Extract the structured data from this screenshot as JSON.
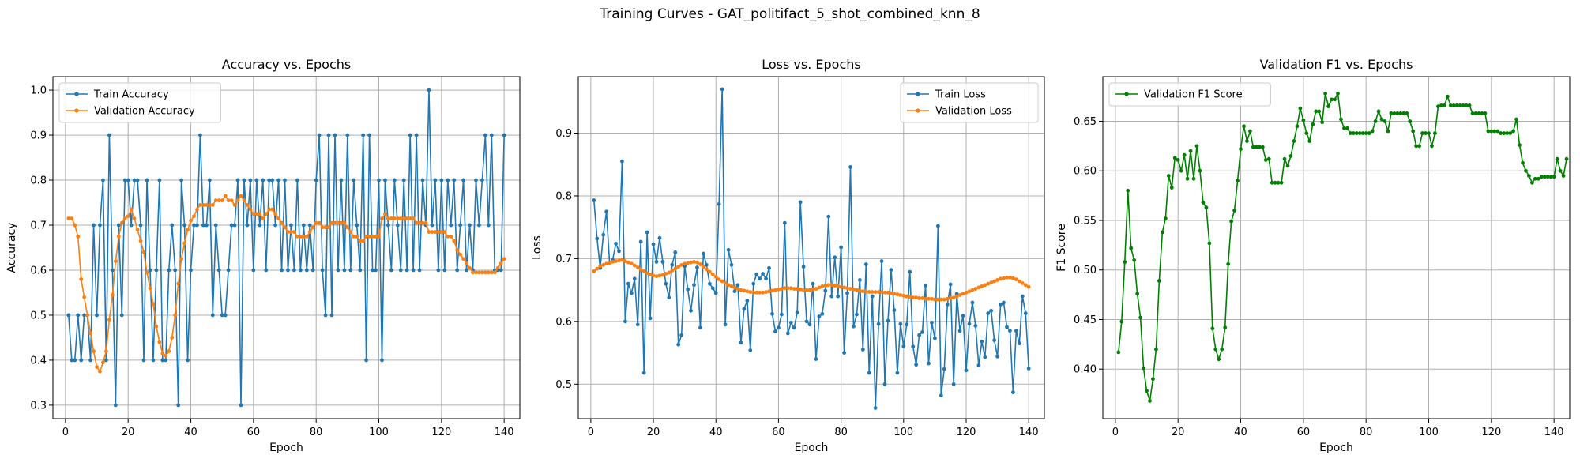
{
  "figure": {
    "suptitle": "Training Curves - GAT_politifact_5_shot_combined_knn_8"
  },
  "chart_data": [
    {
      "type": "line",
      "title": "Accuracy vs. Epochs",
      "xlabel": "Epoch",
      "ylabel": "Accuracy",
      "xlim": [
        -4,
        145
      ],
      "ylim": [
        0.27,
        1.03
      ],
      "xticks": [
        0,
        20,
        40,
        60,
        80,
        100,
        120,
        140
      ],
      "yticks": [
        0.3,
        0.4,
        0.5,
        0.6,
        0.7,
        0.8,
        0.9,
        1.0
      ],
      "ytick_decimals": 1,
      "grid": true,
      "legend_position": "upper-left",
      "series": [
        {
          "name": "Train Accuracy",
          "color": "#1f77b4",
          "x_start": 1,
          "values": [
            0.5,
            0.4,
            0.4,
            0.5,
            0.4,
            0.5,
            0.5,
            0.4,
            0.7,
            0.5,
            0.7,
            0.8,
            0.4,
            0.9,
            0.6,
            0.3,
            0.7,
            0.5,
            0.8,
            0.8,
            0.7,
            0.8,
            0.8,
            0.7,
            0.4,
            0.8,
            0.6,
            0.4,
            0.6,
            0.8,
            0.4,
            0.4,
            0.6,
            0.7,
            0.6,
            0.3,
            0.8,
            0.7,
            0.4,
            0.6,
            0.7,
            0.7,
            0.9,
            0.7,
            0.7,
            0.8,
            0.5,
            0.7,
            0.6,
            0.5,
            0.5,
            0.6,
            0.7,
            0.7,
            0.8,
            0.3,
            0.8,
            0.7,
            0.8,
            0.6,
            0.8,
            0.7,
            0.8,
            0.6,
            0.8,
            0.8,
            0.7,
            0.8,
            0.6,
            0.8,
            0.6,
            0.7,
            0.6,
            0.8,
            0.6,
            0.7,
            0.6,
            0.7,
            0.6,
            0.8,
            0.9,
            0.6,
            0.5,
            0.9,
            0.5,
            0.9,
            0.6,
            0.8,
            0.6,
            0.9,
            0.6,
            0.8,
            0.7,
            0.6,
            0.9,
            0.4,
            0.9,
            0.6,
            0.6,
            0.8,
            0.4,
            0.8,
            0.7,
            0.6,
            0.8,
            0.7,
            0.6,
            0.8,
            0.6,
            0.9,
            0.6,
            0.9,
            0.6,
            0.8,
            0.7,
            1.0,
            0.7,
            0.8,
            0.6,
            0.8,
            0.6,
            0.8,
            0.7,
            0.8,
            0.6,
            0.7,
            0.8,
            0.6,
            0.7,
            0.6,
            0.8,
            0.7,
            0.8,
            0.9,
            0.7,
            0.9,
            0.6,
            0.6,
            0.6,
            0.9
          ]
        },
        {
          "name": "Validation Accuracy",
          "color": "#ff7f0e",
          "x_start": 1,
          "values": [
            0.715,
            0.715,
            0.7,
            0.675,
            0.58,
            0.54,
            0.5,
            0.46,
            0.42,
            0.385,
            0.375,
            0.395,
            0.42,
            0.49,
            0.545,
            0.62,
            0.675,
            0.705,
            0.715,
            0.72,
            0.735,
            0.715,
            0.69,
            0.665,
            0.64,
            0.595,
            0.56,
            0.525,
            0.475,
            0.44,
            0.415,
            0.41,
            0.42,
            0.45,
            0.5,
            0.57,
            0.625,
            0.66,
            0.69,
            0.71,
            0.72,
            0.735,
            0.745,
            0.745,
            0.745,
            0.745,
            0.745,
            0.755,
            0.755,
            0.755,
            0.765,
            0.755,
            0.755,
            0.745,
            0.755,
            0.765,
            0.755,
            0.745,
            0.735,
            0.725,
            0.725,
            0.725,
            0.715,
            0.725,
            0.735,
            0.735,
            0.725,
            0.715,
            0.705,
            0.695,
            0.685,
            0.685,
            0.685,
            0.675,
            0.675,
            0.675,
            0.675,
            0.685,
            0.695,
            0.705,
            0.705,
            0.695,
            0.695,
            0.695,
            0.705,
            0.705,
            0.705,
            0.705,
            0.705,
            0.695,
            0.685,
            0.675,
            0.675,
            0.665,
            0.665,
            0.675,
            0.675,
            0.675,
            0.675,
            0.675,
            0.715,
            0.725,
            0.715,
            0.715,
            0.715,
            0.715,
            0.715,
            0.715,
            0.715,
            0.715,
            0.715,
            0.705,
            0.705,
            0.705,
            0.705,
            0.685,
            0.685,
            0.685,
            0.685,
            0.685,
            0.685,
            0.675,
            0.675,
            0.665,
            0.645,
            0.635,
            0.625,
            0.615,
            0.605,
            0.595,
            0.595,
            0.595,
            0.595,
            0.595,
            0.595,
            0.595,
            0.595,
            0.605,
            0.615,
            0.625
          ]
        }
      ]
    },
    {
      "type": "line",
      "title": "Loss vs. Epochs",
      "xlabel": "Epoch",
      "ylabel": "Loss",
      "xlim": [
        -4,
        145
      ],
      "ylim": [
        0.445,
        0.99
      ],
      "xticks": [
        0,
        20,
        40,
        60,
        80,
        100,
        120,
        140
      ],
      "yticks": [
        0.5,
        0.6,
        0.7,
        0.8,
        0.9
      ],
      "ytick_decimals": 1,
      "grid": true,
      "legend_position": "upper-right",
      "series": [
        {
          "name": "Train Loss",
          "color": "#1f77b4",
          "x_start": 1,
          "values": [
            0.793,
            0.732,
            0.685,
            0.738,
            0.775,
            0.693,
            0.698,
            0.724,
            0.712,
            0.855,
            0.6,
            0.66,
            0.645,
            0.668,
            0.595,
            0.727,
            0.518,
            0.742,
            0.605,
            0.723,
            0.695,
            0.733,
            0.695,
            0.66,
            0.638,
            0.69,
            0.71,
            0.563,
            0.578,
            0.688,
            0.651,
            0.617,
            0.658,
            0.686,
            0.59,
            0.708,
            0.69,
            0.66,
            0.653,
            0.645,
            0.787,
            0.97,
            0.595,
            0.714,
            0.69,
            0.648,
            0.658,
            0.566,
            0.62,
            0.633,
            0.554,
            0.66,
            0.675,
            0.668,
            0.676,
            0.668,
            0.685,
            0.612,
            0.584,
            0.59,
            0.611,
            0.757,
            0.581,
            0.598,
            0.59,
            0.614,
            0.79,
            0.687,
            0.6,
            0.595,
            0.66,
            0.54,
            0.608,
            0.612,
            0.649,
            0.767,
            0.64,
            0.702,
            0.64,
            0.718,
            0.55,
            0.645,
            0.846,
            0.592,
            0.611,
            0.666,
            0.555,
            0.691,
            0.518,
            0.64,
            0.462,
            0.596,
            0.696,
            0.5,
            0.601,
            0.682,
            0.618,
            0.518,
            0.596,
            0.56,
            0.595,
            0.679,
            0.56,
            0.531,
            0.578,
            0.583,
            0.657,
            0.533,
            0.598,
            0.573,
            0.752,
            0.482,
            0.524,
            0.627,
            0.659,
            0.5,
            0.644,
            0.585,
            0.609,
            0.522,
            0.596,
            0.63,
            0.593,
            0.53,
            0.568,
            0.543,
            0.613,
            0.617,
            0.57,
            0.544,
            0.627,
            0.63,
            0.591,
            0.585,
            0.487,
            0.585,
            0.565,
            0.64,
            0.613,
            0.525
          ]
        },
        {
          "name": "Validation Loss",
          "color": "#ff7f0e",
          "x_start": 1,
          "values": [
            0.68,
            0.684,
            0.688,
            0.69,
            0.692,
            0.693,
            0.695,
            0.696,
            0.697,
            0.698,
            0.696,
            0.694,
            0.692,
            0.689,
            0.686,
            0.683,
            0.68,
            0.677,
            0.675,
            0.673,
            0.672,
            0.673,
            0.674,
            0.676,
            0.678,
            0.681,
            0.684,
            0.687,
            0.69,
            0.692,
            0.693,
            0.694,
            0.695,
            0.694,
            0.691,
            0.687,
            0.683,
            0.679,
            0.675,
            0.671,
            0.667,
            0.664,
            0.661,
            0.658,
            0.656,
            0.654,
            0.652,
            0.65,
            0.649,
            0.648,
            0.647,
            0.646,
            0.646,
            0.646,
            0.646,
            0.647,
            0.648,
            0.649,
            0.65,
            0.651,
            0.652,
            0.653,
            0.653,
            0.653,
            0.652,
            0.652,
            0.651,
            0.65,
            0.65,
            0.65,
            0.651,
            0.652,
            0.654,
            0.656,
            0.657,
            0.658,
            0.658,
            0.657,
            0.656,
            0.655,
            0.654,
            0.653,
            0.652,
            0.651,
            0.65,
            0.649,
            0.648,
            0.648,
            0.647,
            0.647,
            0.647,
            0.647,
            0.647,
            0.646,
            0.646,
            0.645,
            0.644,
            0.643,
            0.642,
            0.641,
            0.64,
            0.639,
            0.638,
            0.638,
            0.637,
            0.637,
            0.636,
            0.636,
            0.636,
            0.635,
            0.635,
            0.635,
            0.635,
            0.636,
            0.637,
            0.638,
            0.64,
            0.642,
            0.644,
            0.646,
            0.648,
            0.65,
            0.652,
            0.654,
            0.656,
            0.658,
            0.66,
            0.662,
            0.664,
            0.666,
            0.668,
            0.669,
            0.67,
            0.67,
            0.669,
            0.667,
            0.664,
            0.661,
            0.658,
            0.655
          ]
        }
      ]
    },
    {
      "type": "line",
      "title": "Validation F1 vs. Epochs",
      "xlabel": "Epoch",
      "ylabel": "F1 Score",
      "xlim": [
        -4,
        145
      ],
      "ylim": [
        0.35,
        0.695
      ],
      "xticks": [
        0,
        20,
        40,
        60,
        80,
        100,
        120,
        140
      ],
      "yticks": [
        0.4,
        0.45,
        0.5,
        0.55,
        0.6,
        0.65
      ],
      "ytick_decimals": 2,
      "grid": true,
      "legend_position": "upper-left",
      "series": [
        {
          "name": "Validation F1 Score",
          "color": "#008000",
          "x_start": 1,
          "values": [
            0.417,
            0.448,
            0.508,
            0.58,
            0.522,
            0.51,
            0.476,
            0.452,
            0.401,
            0.378,
            0.368,
            0.39,
            0.42,
            0.489,
            0.538,
            0.552,
            0.595,
            0.583,
            0.613,
            0.611,
            0.6,
            0.616,
            0.592,
            0.62,
            0.592,
            0.625,
            0.6,
            0.568,
            0.563,
            0.527,
            0.441,
            0.42,
            0.41,
            0.42,
            0.442,
            0.506,
            0.549,
            0.56,
            0.59,
            0.622,
            0.645,
            0.63,
            0.64,
            0.624,
            0.624,
            0.624,
            0.624,
            0.611,
            0.612,
            0.588,
            0.588,
            0.588,
            0.588,
            0.612,
            0.605,
            0.615,
            0.63,
            0.645,
            0.663,
            0.651,
            0.638,
            0.63,
            0.647,
            0.66,
            0.66,
            0.649,
            0.678,
            0.665,
            0.672,
            0.672,
            0.678,
            0.652,
            0.643,
            0.643,
            0.638,
            0.638,
            0.638,
            0.638,
            0.638,
            0.638,
            0.638,
            0.64,
            0.65,
            0.66,
            0.652,
            0.65,
            0.64,
            0.658,
            0.658,
            0.658,
            0.658,
            0.658,
            0.658,
            0.65,
            0.64,
            0.625,
            0.625,
            0.638,
            0.638,
            0.638,
            0.625,
            0.638,
            0.665,
            0.666,
            0.666,
            0.675,
            0.666,
            0.666,
            0.666,
            0.666,
            0.666,
            0.666,
            0.666,
            0.658,
            0.658,
            0.658,
            0.658,
            0.658,
            0.64,
            0.64,
            0.64,
            0.64,
            0.638,
            0.638,
            0.638,
            0.638,
            0.64,
            0.652,
            0.626,
            0.608,
            0.6,
            0.595,
            0.588,
            0.592,
            0.592,
            0.594,
            0.594,
            0.594,
            0.594,
            0.594,
            0.612,
            0.6,
            0.595,
            0.612
          ]
        }
      ]
    }
  ]
}
